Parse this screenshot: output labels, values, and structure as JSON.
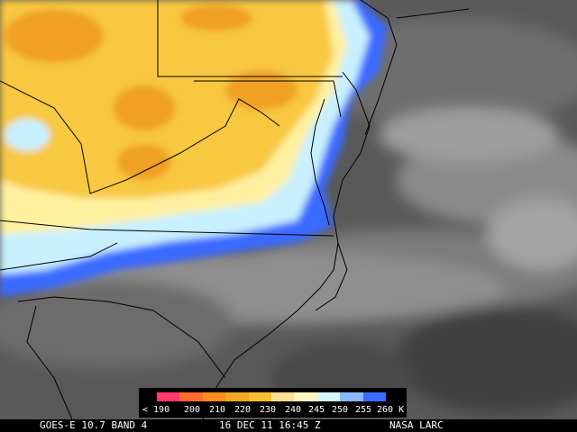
{
  "status_bar": {
    "satellite": "GOES-E 10.7 BAND 4",
    "datetime": "16 DEC 11 16:45 Z",
    "agency": "NASA LARC"
  },
  "legend": {
    "labels": [
      "< 190",
      "200",
      "210",
      "220",
      "230",
      "240",
      "245",
      "250",
      "255",
      "260 K"
    ],
    "colors": [
      "#ff3b6b",
      "#ff6a2e",
      "#ff8c1a",
      "#f5a623",
      "#f7c030",
      "#f7e090",
      "#fff3c0",
      "#d9f6ff",
      "#8ab8ff",
      "#3a6bff"
    ]
  },
  "palette": {
    "cold_tops": "#f0a020",
    "cloud_yellow": "#f8c840",
    "pale_yellow": "#fff0a0",
    "cloud_light_blue": "#c8f0ff",
    "cloud_blue": "#3a6bff",
    "warm_gray_light": "#aaaaaa",
    "warm_gray": "#7a7a7a",
    "warm_gray_dark": "#4a4a4a",
    "boundary_line": "#000000"
  }
}
